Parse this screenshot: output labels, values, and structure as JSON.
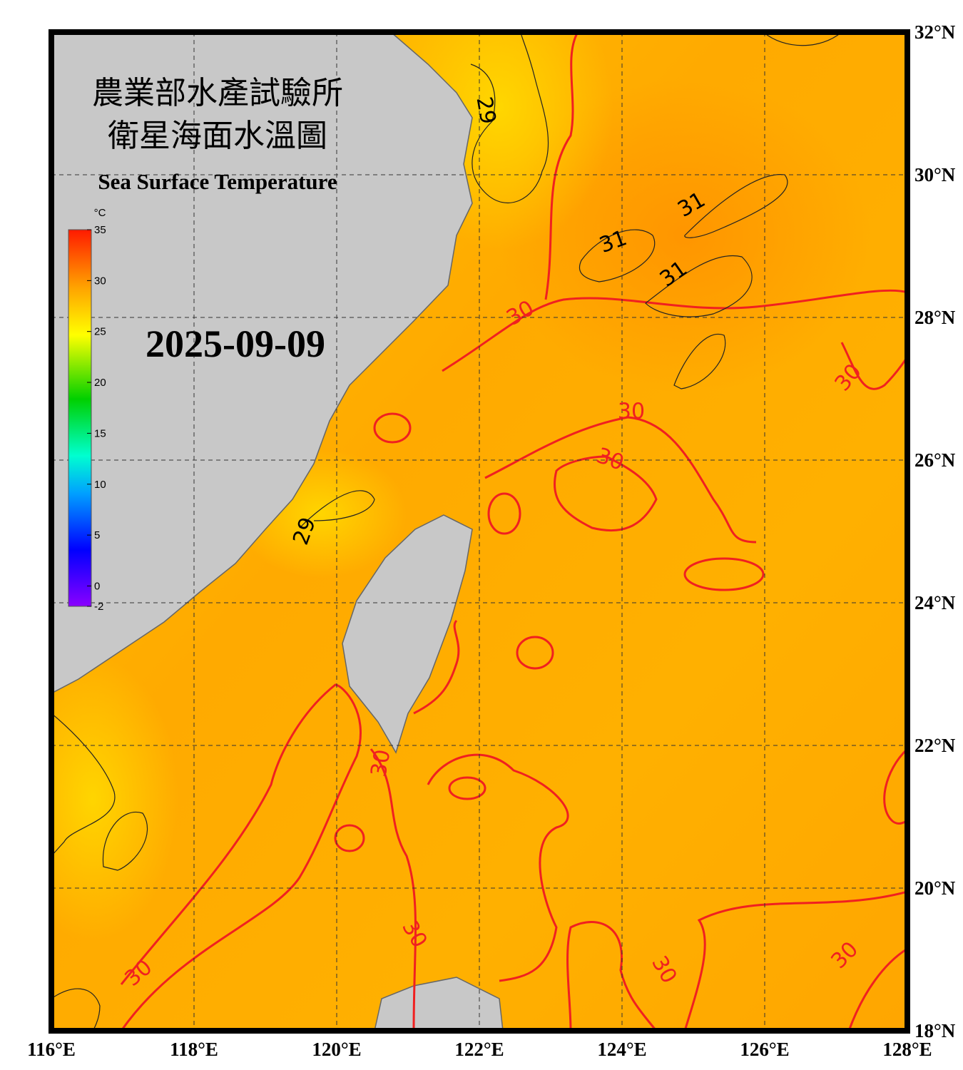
{
  "header": {
    "title_zh_1": "農業部水產試驗所",
    "title_zh_2": "衛星海面水溫圖",
    "title_en": "Sea Surface Temperature",
    "date": "2025-09-09"
  },
  "colorbar": {
    "unit": "°C",
    "range": [
      -2,
      35
    ],
    "ticks": [
      35,
      30,
      25,
      20,
      15,
      10,
      5,
      0,
      -2
    ]
  },
  "map": {
    "lon_range": [
      116,
      128
    ],
    "lat_range": [
      18,
      32
    ],
    "lon_ticks": [
      {
        "value": 116,
        "label": "116°E"
      },
      {
        "value": 118,
        "label": "118°E"
      },
      {
        "value": 120,
        "label": "120°E"
      },
      {
        "value": 122,
        "label": "122°E"
      },
      {
        "value": 124,
        "label": "124°E"
      },
      {
        "value": 126,
        "label": "126°E"
      },
      {
        "value": 128,
        "label": "128°E"
      }
    ],
    "lat_ticks": [
      {
        "value": 32,
        "label": "32°N"
      },
      {
        "value": 30,
        "label": "30°N"
      },
      {
        "value": 28,
        "label": "28°N"
      },
      {
        "value": 26,
        "label": "26°N"
      },
      {
        "value": 24,
        "label": "24°N"
      },
      {
        "value": 22,
        "label": "22°N"
      },
      {
        "value": 20,
        "label": "20°N"
      },
      {
        "value": 18,
        "label": "18°N"
      }
    ],
    "contour_labels": [
      "29",
      "29",
      "31",
      "31",
      "31",
      "30",
      "30",
      "30",
      "30",
      "30",
      "30",
      "30",
      "30",
      "30"
    ]
  }
}
